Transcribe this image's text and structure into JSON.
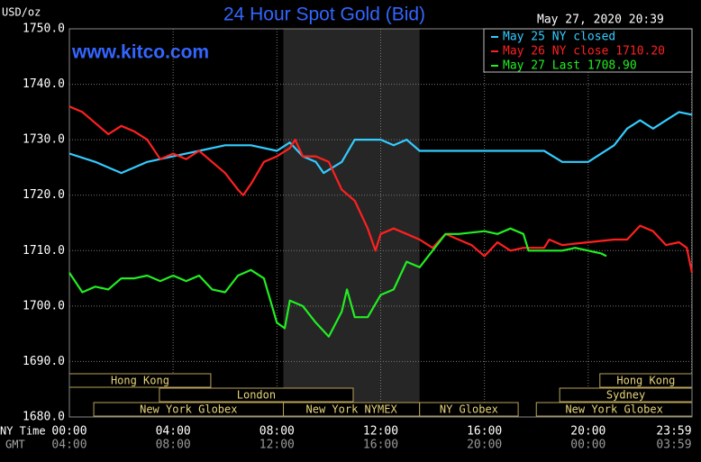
{
  "chart_data": {
    "type": "line",
    "title": "24 Hour Spot Gold (Bid)",
    "y_unit": "USD/oz",
    "timestamp": "May 27, 2020 20:39",
    "watermark": "www.kitco.com",
    "x_axis_label": "NY Time",
    "x2_axis_label": "GMT",
    "xlim": [
      0,
      24
    ],
    "ylim": [
      1680,
      1750
    ],
    "xticks": [
      {
        "value": 0,
        "label": "00:00"
      },
      {
        "value": 4,
        "label": "04:00"
      },
      {
        "value": 8,
        "label": "08:00"
      },
      {
        "value": 12,
        "label": "12:00"
      },
      {
        "value": 16,
        "label": "16:00"
      },
      {
        "value": 20,
        "label": "20:00"
      },
      {
        "value": 23.98,
        "label": "23:59"
      }
    ],
    "x2ticks": [
      "04:00",
      "08:00",
      "12:00",
      "16:00",
      "20:00",
      "00:00",
      "03:59"
    ],
    "yticks": [
      {
        "value": 1680,
        "label": "1680.0"
      },
      {
        "value": 1690,
        "label": "1690.0"
      },
      {
        "value": 1700,
        "label": "1700.0"
      },
      {
        "value": 1710,
        "label": "1710.0"
      },
      {
        "value": 1720,
        "label": "1720.0"
      },
      {
        "value": 1730,
        "label": "1730.0"
      },
      {
        "value": 1740,
        "label": "1740.0"
      },
      {
        "value": 1750,
        "label": "1750.0"
      }
    ],
    "grid": true,
    "shaded_hours": [
      8.25,
      13.5
    ],
    "series": [
      {
        "name": "May 25 NY closed",
        "color": "#33ccff",
        "x": [
          0,
          1,
          2,
          3,
          4,
          5,
          6,
          7,
          8,
          8.5,
          9,
          9.5,
          9.8,
          10.5,
          11,
          12,
          12.5,
          13,
          13.5,
          18.3,
          19,
          20,
          21,
          21.5,
          22,
          22.5,
          23,
          23.5,
          24
        ],
        "values": [
          1727.5,
          1726,
          1724,
          1726,
          1727,
          1728,
          1729,
          1729,
          1728,
          1729.5,
          1727,
          1726,
          1724,
          1726,
          1730,
          1730,
          1729,
          1730,
          1728,
          1728,
          1726,
          1726,
          1729,
          1732,
          1733.5,
          1732,
          1733.5,
          1735,
          1734.5
        ]
      },
      {
        "name": "May 26 NY close 1710.20",
        "color": "#ff2020",
        "x": [
          0,
          0.5,
          1,
          1.5,
          2,
          2.5,
          3,
          3.5,
          4,
          4.5,
          5,
          5.5,
          6,
          6.5,
          6.7,
          7,
          7.5,
          8,
          8.5,
          8.7,
          9,
          9.5,
          10,
          10.5,
          11,
          11.5,
          11.8,
          12,
          12.5,
          13,
          13.5,
          14,
          14.5,
          15,
          15.5,
          16,
          16.5,
          17,
          17.5,
          18.3,
          18.5,
          19,
          20,
          21,
          21.5,
          22,
          22.5,
          23,
          23.5,
          23.8,
          24
        ],
        "values": [
          1736,
          1735,
          1733,
          1731,
          1732.5,
          1731.5,
          1730,
          1726.5,
          1727.5,
          1726.5,
          1728,
          1726,
          1724,
          1721,
          1720,
          1722,
          1726,
          1727,
          1728.5,
          1730,
          1727,
          1727,
          1726,
          1721,
          1719,
          1714,
          1710,
          1713,
          1714,
          1713,
          1712,
          1710.5,
          1713,
          1712,
          1711,
          1709,
          1711.5,
          1710,
          1710.5,
          1710.5,
          1712,
          1711,
          1711.5,
          1712,
          1712,
          1714.5,
          1713.5,
          1711,
          1711.5,
          1710.5,
          1706
        ]
      },
      {
        "name": "May 27 Last 1708.90",
        "color": "#22ee22",
        "x": [
          0,
          0.5,
          1,
          1.5,
          2,
          2.5,
          3,
          3.5,
          4,
          4.5,
          5,
          5.5,
          6,
          6.5,
          7,
          7.5,
          8,
          8.3,
          8.5,
          9,
          9.5,
          10,
          10.5,
          10.7,
          11,
          11.5,
          12,
          12.5,
          13,
          13.5,
          14,
          14.5,
          15,
          16,
          16.5,
          17,
          17.5,
          17.7,
          18.3,
          19,
          19.5,
          20,
          20.5,
          20.7
        ],
        "values": [
          1706,
          1702.5,
          1703.5,
          1703,
          1705,
          1705,
          1705.5,
          1704.5,
          1705.5,
          1704.5,
          1705.5,
          1703,
          1702.5,
          1705.5,
          1706.5,
          1705,
          1697,
          1696,
          1701,
          1700,
          1697,
          1694.5,
          1699,
          1703,
          1698,
          1698,
          1702,
          1703,
          1708,
          1707,
          1710,
          1713,
          1713,
          1713.5,
          1713,
          1714,
          1713,
          1710,
          1710,
          1710,
          1710.5,
          1710,
          1709.5,
          1709
        ]
      }
    ],
    "sessions": [
      {
        "name": "Hong Kong",
        "start": 0,
        "end": 5.45
      },
      {
        "name": "Hong Kong",
        "start": 20.45,
        "end": 24
      },
      {
        "name": "London",
        "start": 3.47,
        "end": 10.94
      },
      {
        "name": "Sydney",
        "start": 18.9,
        "end": 24
      },
      {
        "name": "New York Globex",
        "start": 0.94,
        "end": 8.25
      },
      {
        "name": "New York NYMEX",
        "start": 8.25,
        "end": 13.5
      },
      {
        "name": "NY Globex",
        "start": 13.5,
        "end": 17.3
      },
      {
        "name": "New York Globex",
        "start": 18.0,
        "end": 24
      }
    ]
  }
}
